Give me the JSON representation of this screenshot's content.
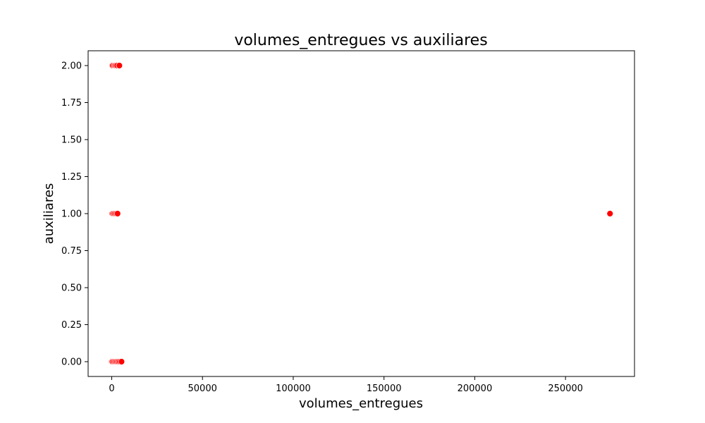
{
  "chart_data": {
    "type": "scatter",
    "title": "volumes_entregues vs auxiliares",
    "xlabel": "volumes_entregues",
    "ylabel": "auxiliares",
    "xlim": [
      -13000,
      288000
    ],
    "ylim": [
      -0.1,
      2.1
    ],
    "xticks": [
      0,
      50000,
      100000,
      150000,
      200000,
      250000
    ],
    "xtick_labels": [
      "0",
      "50000",
      "100000",
      "150000",
      "200000",
      "250000"
    ],
    "yticks": [
      0,
      0.25,
      0.5,
      0.75,
      1,
      1.25,
      1.5,
      1.75,
      2
    ],
    "ytick_labels": [
      "0.00",
      "0.25",
      "0.50",
      "0.75",
      "1.00",
      "1.25",
      "1.50",
      "1.75",
      "2.00"
    ],
    "grid": false,
    "legend": "none",
    "marker_color": "#ff0000",
    "marker_edge_color": "#ffffff",
    "points": [
      {
        "x": 0,
        "y": 2
      },
      {
        "x": 200,
        "y": 2
      },
      {
        "x": 600,
        "y": 2
      },
      {
        "x": 1500,
        "y": 2
      },
      {
        "x": 2200,
        "y": 2
      },
      {
        "x": 3000,
        "y": 2
      },
      {
        "x": 4200,
        "y": 2
      },
      {
        "x": 0,
        "y": 1
      },
      {
        "x": 300,
        "y": 1
      },
      {
        "x": 800,
        "y": 1
      },
      {
        "x": 1600,
        "y": 1
      },
      {
        "x": 2400,
        "y": 1
      },
      {
        "x": 3200,
        "y": 1
      },
      {
        "x": 274500,
        "y": 1
      },
      {
        "x": 0,
        "y": 0
      },
      {
        "x": 400,
        "y": 0
      },
      {
        "x": 1200,
        "y": 0
      },
      {
        "x": 2000,
        "y": 0
      },
      {
        "x": 2800,
        "y": 0
      },
      {
        "x": 3600,
        "y": 0
      },
      {
        "x": 4500,
        "y": 0
      },
      {
        "x": 5400,
        "y": 0
      }
    ]
  }
}
